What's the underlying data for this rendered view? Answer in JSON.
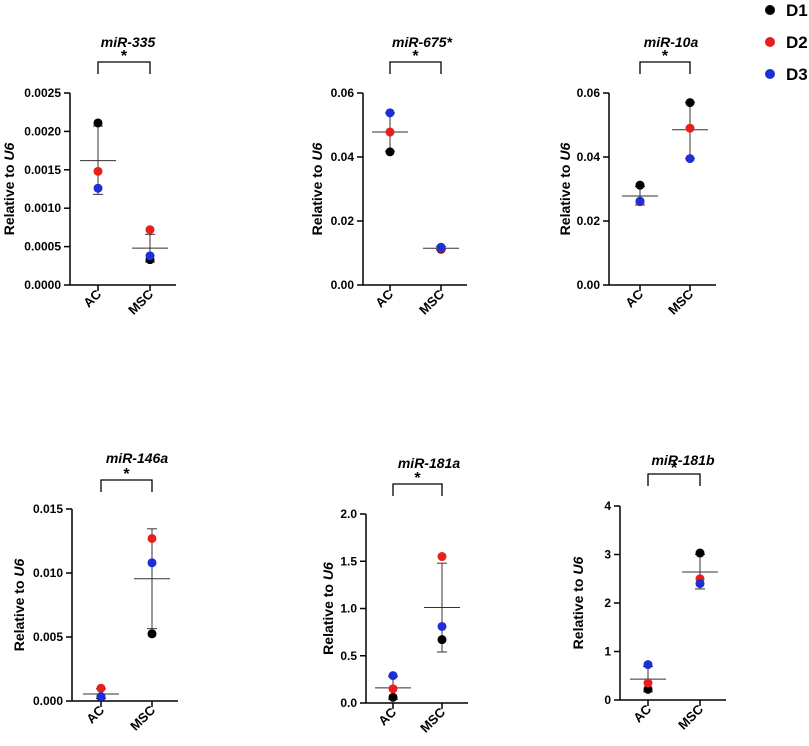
{
  "legend": [
    {
      "label": "D1",
      "color": "#000000"
    },
    {
      "label": "D2",
      "color": "#e8201c"
    },
    {
      "label": "D3",
      "color": "#1f2fd6"
    }
  ],
  "chart_data": [
    {
      "type": "scatter",
      "title": "miR-335",
      "ylabel_prefix": "Relative to ",
      "ylabel_italic": "U6",
      "categories": [
        "AC",
        "MSC"
      ],
      "ylim": [
        0,
        0.0025
      ],
      "yticks": [
        0,
        0.0005,
        0.001,
        0.0015,
        0.002,
        0.0025
      ],
      "ytick_labels": [
        "0.0000",
        "0.0005",
        "0.0010",
        "0.0015",
        "0.0020",
        "0.0025"
      ],
      "series": [
        {
          "name": "D1",
          "values": [
            0.00211,
            0.00033
          ]
        },
        {
          "name": "D2",
          "values": [
            0.00148,
            0.00072
          ]
        },
        {
          "name": "D3",
          "values": [
            0.00126,
            0.00038
          ]
        }
      ],
      "means": [
        0.00162,
        0.00048
      ],
      "sd_low": [
        0.00118,
        0.0003
      ],
      "sd_high": [
        0.00207,
        0.00066
      ],
      "significance": "*"
    },
    {
      "type": "scatter",
      "title": "miR-675*",
      "ylabel_prefix": "Relative to ",
      "ylabel_italic": "U6",
      "categories": [
        "AC",
        "MSC"
      ],
      "ylim": [
        0,
        0.06
      ],
      "yticks": [
        0,
        0.02,
        0.04,
        0.06
      ],
      "ytick_labels": [
        "0.00",
        "0.02",
        "0.04",
        "0.06"
      ],
      "series": [
        {
          "name": "D1",
          "values": [
            0.0416,
            0.0112
          ]
        },
        {
          "name": "D2",
          "values": [
            0.0478,
            0.0115
          ]
        },
        {
          "name": "D3",
          "values": [
            0.0538,
            0.0118
          ]
        }
      ],
      "means": [
        0.0478,
        0.0115
      ],
      "sd_low": [
        0.0418,
        0.011
      ],
      "sd_high": [
        0.0538,
        0.012
      ],
      "significance": "*"
    },
    {
      "type": "scatter",
      "title": "miR-10a",
      "ylabel_prefix": "Relative to ",
      "ylabel_italic": "U6",
      "categories": [
        "AC",
        "MSC"
      ],
      "ylim": [
        0,
        0.06
      ],
      "yticks": [
        0,
        0.02,
        0.04,
        0.06
      ],
      "ytick_labels": [
        "0.00",
        "0.02",
        "0.04",
        "0.06"
      ],
      "series": [
        {
          "name": "D1",
          "values": [
            0.0312,
            0.057
          ]
        },
        {
          "name": "D2",
          "values": [
            0.026,
            0.049
          ]
        },
        {
          "name": "D3",
          "values": [
            0.0262,
            0.0395
          ]
        }
      ],
      "means": [
        0.0278,
        0.0485
      ],
      "sd_low": [
        0.025,
        0.0395
      ],
      "sd_high": [
        0.0308,
        0.057
      ],
      "significance": "*"
    },
    {
      "type": "scatter",
      "title": "miR-146a",
      "ylabel_prefix": "Relative to ",
      "ylabel_italic": "U6",
      "categories": [
        "AC",
        "MSC"
      ],
      "ylim": [
        0,
        0.015
      ],
      "yticks": [
        0,
        0.005,
        0.01,
        0.015
      ],
      "ytick_labels": [
        "0.000",
        "0.005",
        "0.010",
        "0.015"
      ],
      "series": [
        {
          "name": "D1",
          "values": [
            0.0003,
            0.00525
          ]
        },
        {
          "name": "D2",
          "values": [
            0.001,
            0.0127
          ]
        },
        {
          "name": "D3",
          "values": [
            0.00035,
            0.0108
          ]
        }
      ],
      "means": [
        0.00055,
        0.00955
      ],
      "sd_low": [
        0.0002,
        0.00565
      ],
      "sd_high": [
        0.00095,
        0.01345
      ],
      "significance": "*"
    },
    {
      "type": "scatter",
      "title": "miR-181a",
      "ylabel_prefix": "Relative to ",
      "ylabel_italic": "U6",
      "categories": [
        "AC",
        "MSC"
      ],
      "ylim": [
        0,
        2.0
      ],
      "yticks": [
        0,
        0.5,
        1.0,
        1.5,
        2.0
      ],
      "ytick_labels": [
        "0.0",
        "0.5",
        "1.0",
        "1.5",
        "2.0"
      ],
      "series": [
        {
          "name": "D1",
          "values": [
            0.06,
            0.67
          ]
        },
        {
          "name": "D2",
          "values": [
            0.15,
            1.55
          ]
        },
        {
          "name": "D3",
          "values": [
            0.29,
            0.81
          ]
        }
      ],
      "means": [
        0.16,
        1.01
      ],
      "sd_low": [
        0.04,
        0.54
      ],
      "sd_high": [
        0.28,
        1.48
      ],
      "significance": "*"
    },
    {
      "type": "scatter",
      "title": "miR-181b",
      "ylabel_prefix": "Relative to ",
      "ylabel_italic": "U6",
      "categories": [
        "AC",
        "MSC"
      ],
      "ylim": [
        0,
        4
      ],
      "yticks": [
        0,
        1,
        2,
        3,
        4
      ],
      "ytick_labels": [
        "0",
        "1",
        "2",
        "3",
        "4"
      ],
      "series": [
        {
          "name": "D1",
          "values": [
            0.22,
            3.03
          ]
        },
        {
          "name": "D2",
          "values": [
            0.35,
            2.5
          ]
        },
        {
          "name": "D3",
          "values": [
            0.73,
            2.4
          ]
        }
      ],
      "means": [
        0.43,
        2.64
      ],
      "sd_low": [
        0.17,
        2.29
      ],
      "sd_high": [
        0.69,
        3.0
      ],
      "significance": "*"
    }
  ]
}
